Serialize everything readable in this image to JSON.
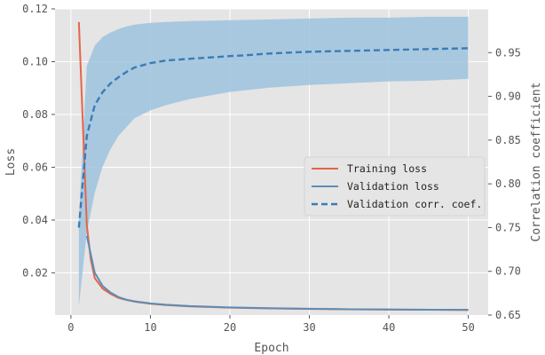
{
  "chart_data": {
    "type": "line",
    "title": "",
    "xlabel": "Epoch",
    "ylabel": "Loss",
    "y2label": "Correlation coefficient",
    "xlim": [
      -2,
      52.5
    ],
    "ylim": [
      0.004,
      0.12
    ],
    "y2lim": [
      0.65,
      1.0
    ],
    "xticks": [
      0,
      10,
      20,
      30,
      40,
      50
    ],
    "yticks": [
      0.02,
      0.04,
      0.06,
      0.08,
      0.1,
      0.12
    ],
    "yticklabels": [
      "0.02",
      "0.04",
      "0.06",
      "0.08",
      "0.10",
      "0.12"
    ],
    "y2ticks": [
      0.65,
      0.7,
      0.75,
      0.8,
      0.85,
      0.9,
      0.95
    ],
    "y2ticklabels": [
      "0.65",
      "0.70",
      "0.75",
      "0.80",
      "0.85",
      "0.90",
      "0.95"
    ],
    "grid": true,
    "legend_position": "right",
    "series": [
      {
        "name": "Training loss",
        "axis": "left",
        "color": "#e5654a",
        "style": "solid",
        "x": [
          1,
          2,
          2.5,
          3,
          4,
          5,
          6,
          7,
          8,
          10,
          12,
          15,
          20,
          25,
          30,
          35,
          40,
          45,
          50
        ],
        "y": [
          0.115,
          0.038,
          0.025,
          0.018,
          0.014,
          0.012,
          0.0105,
          0.0097,
          0.0091,
          0.0083,
          0.0078,
          0.0073,
          0.0068,
          0.0065,
          0.0063,
          0.0062,
          0.0061,
          0.006,
          0.0059
        ]
      },
      {
        "name": "Validation loss",
        "axis": "left",
        "color": "#5b8db8",
        "style": "solid",
        "x": [
          2,
          3,
          4,
          5,
          6,
          7,
          8,
          10,
          12,
          15,
          20,
          25,
          30,
          35,
          40,
          45,
          50
        ],
        "y": [
          0.034,
          0.02,
          0.015,
          0.0125,
          0.0108,
          0.0098,
          0.0092,
          0.0084,
          0.0079,
          0.0074,
          0.0069,
          0.0066,
          0.0064,
          0.0062,
          0.0061,
          0.006,
          0.006
        ]
      },
      {
        "name": "Validation corr. coef.",
        "axis": "right",
        "color": "#3a7cb8",
        "style": "dashed",
        "x": [
          1,
          2,
          3,
          4,
          5,
          6,
          7,
          8,
          10,
          12,
          15,
          20,
          22,
          25,
          30,
          35,
          40,
          45,
          50
        ],
        "y": [
          0.75,
          0.855,
          0.89,
          0.905,
          0.915,
          0.922,
          0.928,
          0.933,
          0.938,
          0.941,
          0.943,
          0.946,
          0.947,
          0.949,
          0.951,
          0.952,
          0.953,
          0.954,
          0.955
        ]
      }
    ],
    "band": {
      "axis": "right",
      "color": "#9ec3de",
      "x": [
        1,
        2,
        3,
        4,
        5,
        6,
        7,
        8,
        10,
        12,
        15,
        20,
        25,
        30,
        35,
        40,
        45,
        50
      ],
      "upper": [
        0.76,
        0.935,
        0.958,
        0.968,
        0.973,
        0.977,
        0.98,
        0.982,
        0.984,
        0.985,
        0.986,
        0.987,
        0.988,
        0.989,
        0.99,
        0.99,
        0.991,
        0.991
      ],
      "lower": [
        0.66,
        0.745,
        0.79,
        0.82,
        0.84,
        0.855,
        0.865,
        0.875,
        0.884,
        0.89,
        0.897,
        0.905,
        0.91,
        0.913,
        0.915,
        0.917,
        0.918,
        0.92
      ]
    }
  }
}
